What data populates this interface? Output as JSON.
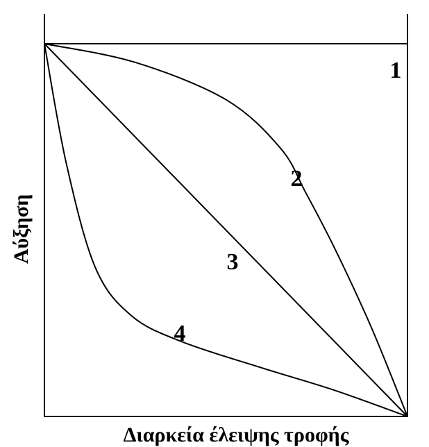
{
  "chart_data": {
    "type": "line",
    "title": "",
    "xlabel": "Διαρκεία έλειψης τροφής",
    "ylabel": "Αύξηση",
    "xlim": [
      0,
      1
    ],
    "ylim": [
      0,
      1
    ],
    "grid": false,
    "legend": "none",
    "series": [
      {
        "name": "1",
        "x": [
          0,
          1
        ],
        "y": [
          1.0,
          1.0
        ]
      },
      {
        "name": "2",
        "x": [
          0,
          0.25,
          0.5,
          0.65,
          0.72,
          0.8,
          0.9,
          1.0
        ],
        "y": [
          1.0,
          0.95,
          0.85,
          0.72,
          0.6,
          0.45,
          0.24,
          0.0
        ]
      },
      {
        "name": "3",
        "x": [
          0,
          1
        ],
        "y": [
          1.0,
          0.0
        ]
      },
      {
        "name": "4",
        "x": [
          0,
          0.06,
          0.14,
          0.24,
          0.38,
          0.6,
          0.8,
          1.0
        ],
        "y": [
          1.0,
          0.68,
          0.4,
          0.27,
          0.2,
          0.13,
          0.07,
          0.0
        ]
      }
    ],
    "line_color": "#000000"
  }
}
